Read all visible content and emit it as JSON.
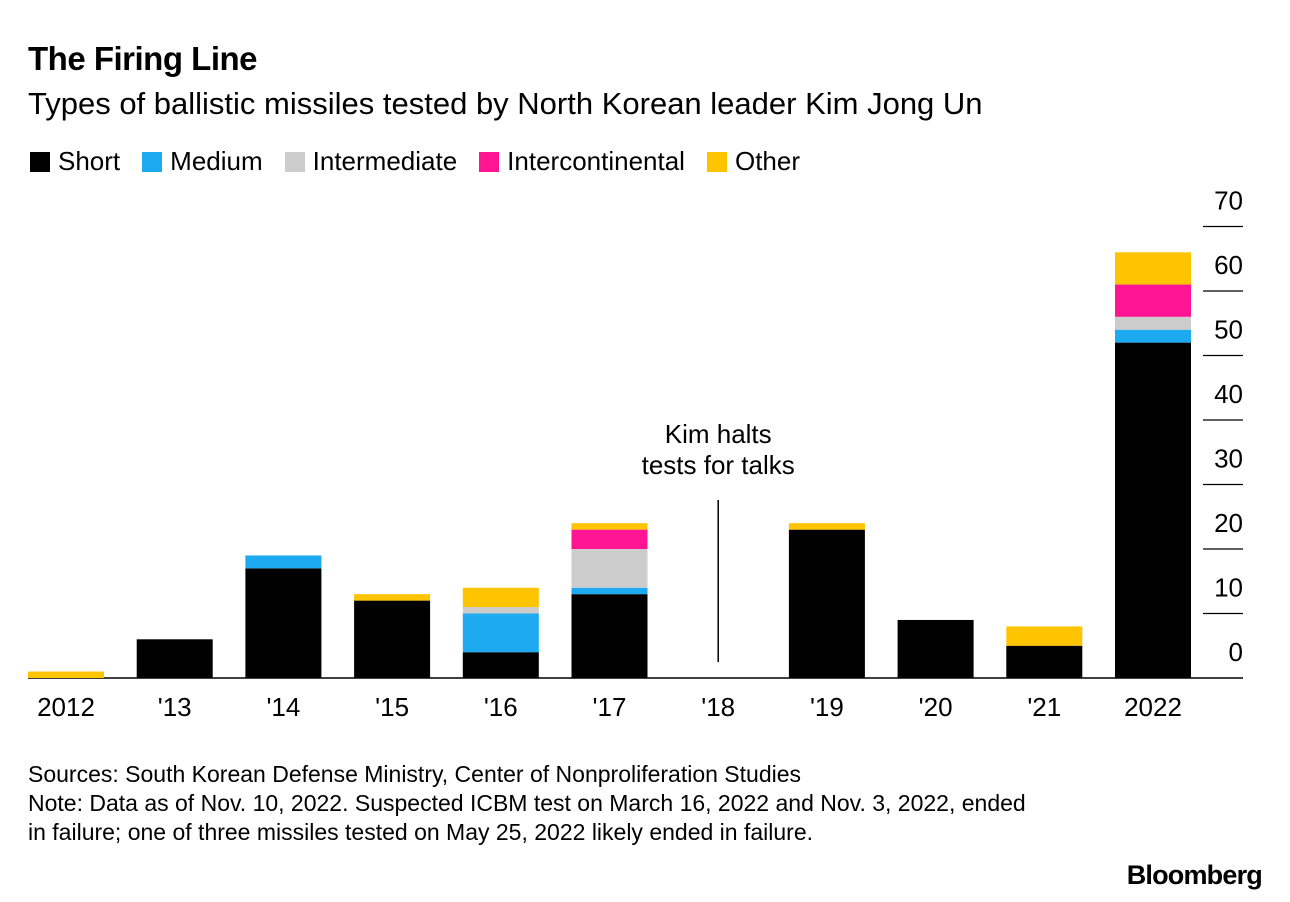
{
  "title": "The Firing Line",
  "subtitle": "Types of ballistic missiles tested by North Korean leader Kim Jong Un",
  "legend": [
    {
      "label": "Short",
      "color": "#000000"
    },
    {
      "label": "Medium",
      "color": "#1eaaf1"
    },
    {
      "label": "Intermediate",
      "color": "#cccccc"
    },
    {
      "label": "Intercontinental",
      "color": "#ff1493"
    },
    {
      "label": "Other",
      "color": "#ffc400"
    }
  ],
  "chart_data": {
    "type": "bar",
    "stacked": true,
    "categories": [
      "2012",
      "'13",
      "'14",
      "'15",
      "'16",
      "'17",
      "'18",
      "'19",
      "'20",
      "'21",
      "2022"
    ],
    "series": [
      {
        "name": "Short",
        "color": "#000000",
        "values": [
          0,
          6,
          17,
          12,
          4,
          13,
          0,
          23,
          9,
          5,
          52
        ]
      },
      {
        "name": "Medium",
        "color": "#1eaaf1",
        "values": [
          0,
          0,
          2,
          0,
          6,
          1,
          0,
          0,
          0,
          0,
          2
        ]
      },
      {
        "name": "Intermediate",
        "color": "#cccccc",
        "values": [
          0,
          0,
          0,
          0,
          1,
          6,
          0,
          0,
          0,
          0,
          2
        ]
      },
      {
        "name": "Intercontinental",
        "color": "#ff1493",
        "values": [
          0,
          0,
          0,
          0,
          0,
          3,
          0,
          0,
          0,
          0,
          5
        ]
      },
      {
        "name": "Other",
        "color": "#ffc400",
        "values": [
          1,
          0,
          0,
          1,
          3,
          1,
          0,
          1,
          0,
          3,
          5
        ]
      }
    ],
    "ylim": [
      0,
      70
    ],
    "yticks": [
      "0",
      "10",
      "20",
      "30",
      "40",
      "50",
      "60",
      "70"
    ],
    "annotation": {
      "text_line1": "Kim halts",
      "text_line2": "tests for talks",
      "category": "'18"
    },
    "xlabel": "",
    "ylabel": ""
  },
  "footer": {
    "sources": "Sources: South Korean Defense Ministry, Center of Nonproliferation Studies",
    "note": "Note: Data as of Nov. 10, 2022. Suspected ICBM test on March 16, 2022 and Nov. 3, 2022, ended in failure; one of three missiles tested on May 25, 2022 likely ended in failure.",
    "brand": "Bloomberg"
  }
}
